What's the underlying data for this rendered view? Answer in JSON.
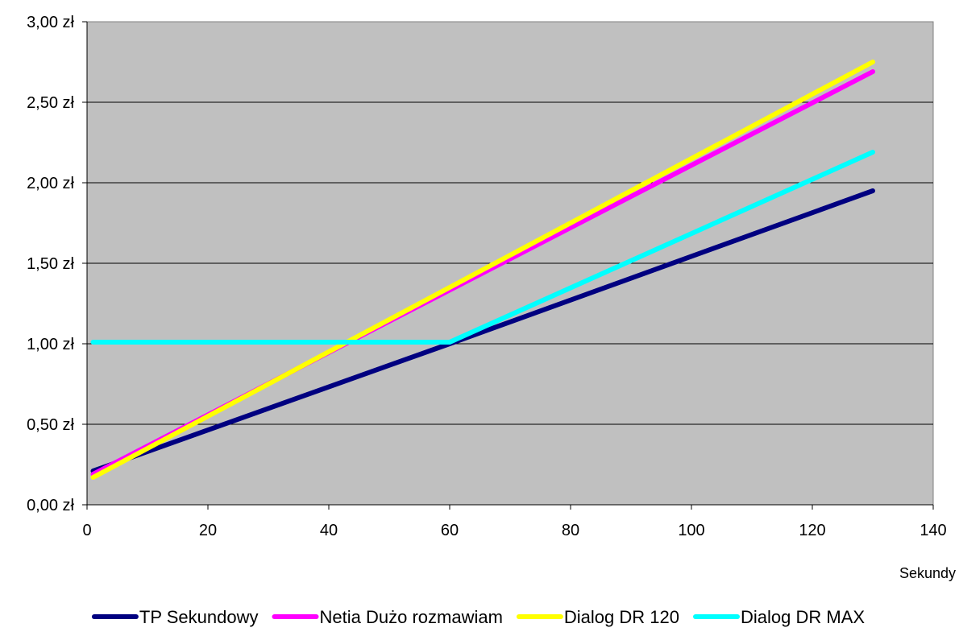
{
  "chart_data": {
    "type": "line",
    "title": "",
    "xlabel": "Sekundy",
    "ylabel": "",
    "xlim": [
      0,
      140
    ],
    "ylim": [
      0,
      3
    ],
    "x_ticks": [
      0,
      20,
      40,
      60,
      80,
      100,
      120,
      140
    ],
    "x_tick_labels": [
      "0",
      "20",
      "40",
      "60",
      "80",
      "100",
      "120",
      "140"
    ],
    "y_ticks": [
      0,
      0.5,
      1,
      1.5,
      2,
      2.5,
      3
    ],
    "y_tick_labels": [
      "0,00 zł",
      "0,50 zł",
      "1,00 zł",
      "1,50 zł",
      "2,00 zł",
      "2,50 zł",
      "3,00 zł"
    ],
    "grid": "horizontal",
    "plot_background": "#c0c0c0",
    "legend_position": "bottom",
    "series": [
      {
        "name": "TP Sekundowy",
        "color": "#000080",
        "x": [
          1,
          60,
          130
        ],
        "y": [
          0.21,
          1.0,
          1.95
        ]
      },
      {
        "name": "Netia Dużo rozmawiam",
        "color": "#ff00ff",
        "x": [
          1,
          130
        ],
        "y": [
          0.19,
          2.69
        ]
      },
      {
        "name": "Dialog DR 120",
        "color": "#ffff00",
        "x": [
          1,
          130
        ],
        "y": [
          0.17,
          2.75
        ]
      },
      {
        "name": "Dialog DR MAX",
        "color": "#00ffff",
        "x": [
          1,
          60,
          130
        ],
        "y": [
          1.01,
          1.01,
          2.19
        ]
      }
    ]
  }
}
